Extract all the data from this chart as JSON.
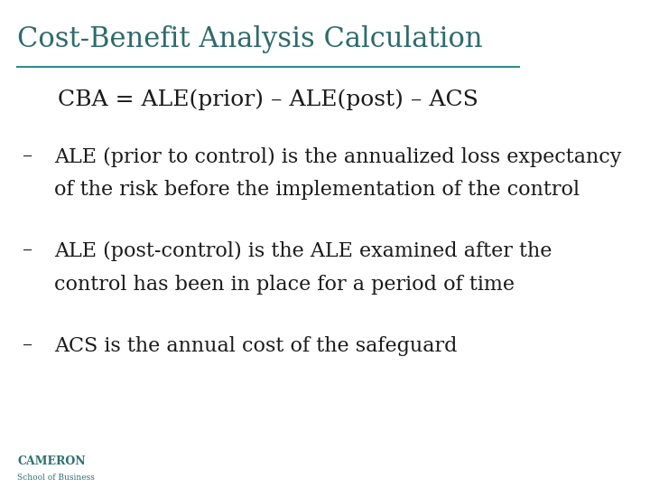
{
  "title": "Cost-Benefit Analysis Calculation",
  "title_color": "#2e6b6b",
  "title_fontsize": 22,
  "line_color": "#2e8b8b",
  "formula": "CBA = ALE(prior) – ALE(post) – ACS",
  "formula_fontsize": 18,
  "bullet_fontsize": 16,
  "bullets": [
    {
      "dash": "–",
      "line1": "ALE (prior to control) is the annualized loss expectancy",
      "line2": "of the risk before the implementation of the control"
    },
    {
      "dash": "–",
      "line1": "ALE (post-control) is the ALE examined after the",
      "line2": "control has been in place for a period of time"
    },
    {
      "dash": "–",
      "line1": "ACS is the annual cost of the safeguard",
      "line2": ""
    }
  ],
  "cameron_text": "CAMERON",
  "cameron_sub": "School of Business",
  "cameron_color": "#2e7070",
  "background_color": "#ffffff",
  "text_color": "#1a1a1a"
}
